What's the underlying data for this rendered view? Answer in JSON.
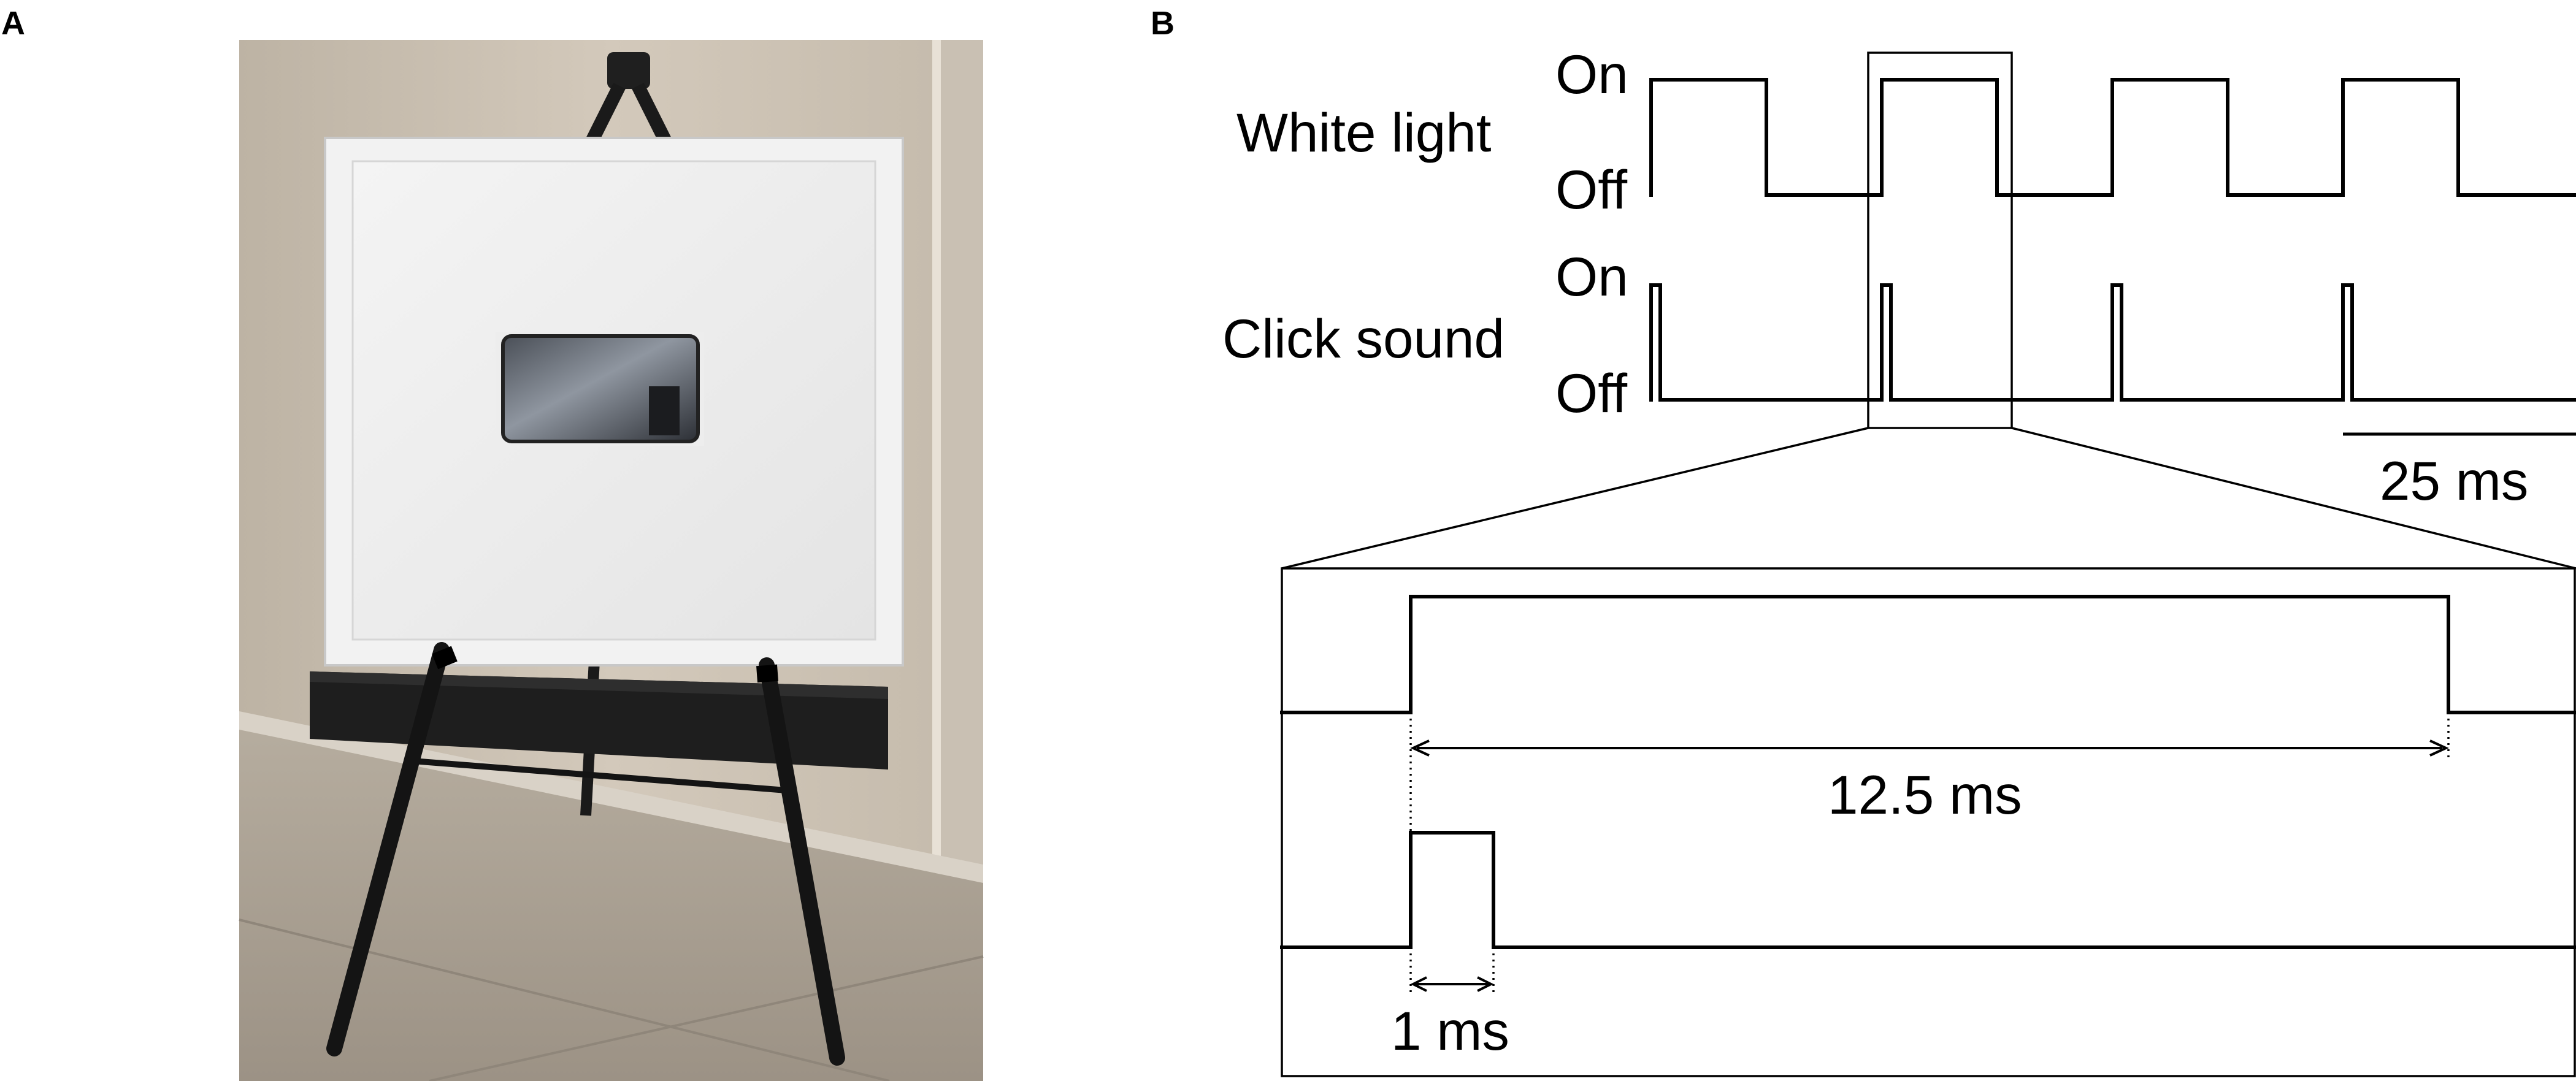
{
  "panels": {
    "a_label": "A",
    "b_label": "B"
  },
  "photo": {
    "icons": [
      "easel-icon",
      "frame-icon",
      "tablet-icon",
      "speaker-icon"
    ]
  },
  "signals": {
    "light_label": "White light",
    "sound_label": "Click sound",
    "on_label": "On",
    "off_label": "Off",
    "scalebar_label": "25 ms"
  },
  "zoom": {
    "duration_label": "12.5 ms",
    "click_label": "1 ms"
  },
  "timing_ms": {
    "period": 25,
    "light_on": 12.5,
    "click_on": 1
  },
  "colors": {
    "wall": "#cbbfae",
    "floor": "#a59a8d",
    "frame": "#f2f2f2",
    "easel": "#1a1a1a",
    "speaker": "#1e1e1e"
  }
}
